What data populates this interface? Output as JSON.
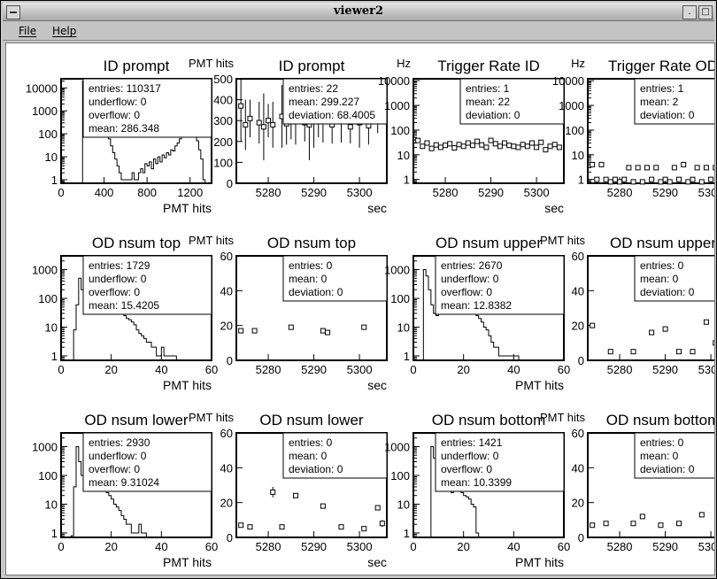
{
  "window": {
    "title": "viewer2"
  },
  "menubar": {
    "items": [
      {
        "label": "File"
      },
      {
        "label": "Help"
      }
    ]
  },
  "chart_data": [
    {
      "type": "histogram",
      "title": "ID prompt",
      "xlabel": "PMT hits",
      "ylabel": "",
      "log_y": true,
      "xlim": [
        0,
        1400
      ],
      "ylim": [
        0.7,
        25000
      ],
      "xticks": [
        0,
        400,
        800,
        1200
      ],
      "yticks": [
        1,
        10,
        100,
        1000,
        10000
      ],
      "stats": [
        {
          "label": "entries",
          "value": "110317"
        },
        {
          "label": "underflow",
          "value": "0"
        },
        {
          "label": "overflow",
          "value": "0"
        },
        {
          "label": "mean",
          "value": "286.348"
        }
      ],
      "x": [
        200,
        220,
        240,
        260,
        280,
        300,
        320,
        340,
        360,
        380,
        400,
        420,
        440,
        460,
        480,
        500,
        520,
        540,
        560,
        580,
        600,
        620,
        640,
        660,
        680,
        700,
        720,
        740,
        760,
        780,
        800,
        820,
        840,
        860,
        880,
        900,
        920,
        940,
        960,
        980,
        1000,
        1020,
        1040,
        1060,
        1080,
        1100,
        1120,
        1140,
        1160,
        1180,
        1200,
        1220,
        1240,
        1260,
        1280,
        1300,
        1320
      ],
      "values": [
        20000,
        8000,
        6000,
        4000,
        3000,
        1800,
        1000,
        700,
        500,
        350,
        200,
        120,
        60,
        30,
        15,
        8,
        4,
        2,
        1,
        1,
        1,
        1,
        1,
        2,
        1,
        1,
        2,
        3,
        2,
        5,
        4,
        6,
        3,
        8,
        5,
        10,
        6,
        12,
        9,
        15,
        12,
        20,
        18,
        30,
        40,
        60,
        80,
        150,
        300,
        500,
        700,
        600,
        200,
        50,
        20,
        8,
        1
      ]
    },
    {
      "type": "scatter",
      "title": "ID prompt",
      "xlabel": "sec",
      "ylabel": "PMT hits",
      "log_y": false,
      "xlim": [
        5273,
        5306
      ],
      "ylim": [
        0,
        500
      ],
      "xticks": [
        5280,
        5290,
        5300
      ],
      "yticks": [
        0,
        100,
        200,
        300,
        400,
        500
      ],
      "stats": [
        {
          "label": "entries",
          "value": "22"
        },
        {
          "label": "mean",
          "value": "299.227"
        },
        {
          "label": "deviation",
          "value": "68.4005"
        }
      ],
      "x": [
        5274,
        5275,
        5276,
        5278,
        5279,
        5280,
        5281,
        5283,
        5284,
        5285,
        5286,
        5288,
        5289,
        5290,
        5291,
        5292,
        5294,
        5296,
        5298,
        5300,
        5302,
        5304
      ],
      "values": [
        370,
        280,
        310,
        290,
        270,
        300,
        280,
        320,
        285,
        300,
        305,
        290,
        280,
        310,
        300,
        295,
        280,
        305,
        270,
        290,
        275,
        300
      ],
      "errors": [
        170,
        120,
        90,
        100,
        160,
        80,
        110,
        150,
        100,
        90,
        120,
        90,
        170,
        140,
        80,
        100,
        90,
        110,
        80,
        120,
        90,
        60
      ]
    },
    {
      "type": "scatter",
      "title": "Trigger Rate ID",
      "xlabel": "sec",
      "ylabel": "Hz",
      "log_y": true,
      "xlim": [
        5273,
        5306
      ],
      "ylim": [
        0.7,
        12000
      ],
      "xticks": [
        5280,
        5290,
        5300
      ],
      "yticks": [
        1,
        10,
        100,
        1000,
        10000
      ],
      "stats": [
        {
          "label": "entries",
          "value": "1"
        },
        {
          "label": "mean",
          "value": "22"
        },
        {
          "label": "deviation",
          "value": "0"
        }
      ],
      "x": [
        5274,
        5275,
        5276,
        5277,
        5278,
        5279,
        5280,
        5281,
        5282,
        5283,
        5284,
        5285,
        5286,
        5287,
        5288,
        5289,
        5290,
        5291,
        5292,
        5293,
        5294,
        5295,
        5296,
        5297,
        5298,
        5299,
        5300,
        5301,
        5302,
        5303,
        5304,
        5305
      ],
      "values": [
        38,
        22,
        30,
        18,
        25,
        20,
        24,
        28,
        19,
        26,
        22,
        30,
        24,
        35,
        25,
        20,
        38,
        28,
        22,
        30,
        24,
        22,
        20,
        26,
        22,
        30,
        20,
        32,
        16,
        22,
        26,
        20
      ]
    },
    {
      "type": "scatter",
      "title": "Trigger Rate OD",
      "xlabel": "sec",
      "ylabel": "Hz",
      "log_y": true,
      "xlim": [
        5273,
        5306
      ],
      "ylim": [
        0.7,
        12000
      ],
      "xticks": [
        5280,
        5290,
        5300
      ],
      "yticks": [
        1,
        10,
        100,
        1000,
        10000
      ],
      "stats": [
        {
          "label": "entries",
          "value": "1"
        },
        {
          "label": "mean",
          "value": "2"
        },
        {
          "label": "deviation",
          "value": "0"
        }
      ],
      "x": [
        5274,
        5275,
        5276,
        5277,
        5278,
        5279,
        5280,
        5281,
        5282,
        5283,
        5284,
        5285,
        5286,
        5287,
        5288,
        5289,
        5290,
        5291,
        5292,
        5293,
        5294,
        5295,
        5296,
        5297,
        5298,
        5299,
        5300,
        5301,
        5302,
        5303,
        5304,
        5305
      ],
      "values": [
        4,
        1,
        4,
        1,
        0.8,
        1,
        0.8,
        1,
        3,
        0.8,
        3,
        0.8,
        3,
        1,
        3,
        0.8,
        1,
        0.8,
        3,
        1,
        4,
        0.8,
        1,
        3,
        0.8,
        3,
        1,
        3,
        0.8,
        3,
        1,
        2
      ]
    },
    {
      "type": "histogram",
      "title": "OD nsum top",
      "xlabel": "PMT hits",
      "ylabel": "",
      "log_y": true,
      "xlim": [
        0,
        60
      ],
      "ylim": [
        0.7,
        3000
      ],
      "xticks": [
        0,
        20,
        40,
        60
      ],
      "yticks": [
        1,
        10,
        100,
        1000
      ],
      "stats": [
        {
          "label": "entries",
          "value": "1729"
        },
        {
          "label": "underflow",
          "value": "0"
        },
        {
          "label": "overflow",
          "value": "0"
        },
        {
          "label": "mean",
          "value": "15.4205"
        }
      ],
      "x": [
        5,
        6,
        7,
        8,
        9,
        10,
        11,
        12,
        13,
        14,
        15,
        16,
        17,
        18,
        19,
        20,
        21,
        22,
        23,
        24,
        25,
        26,
        27,
        28,
        29,
        30,
        31,
        32,
        33,
        34,
        35,
        36,
        37,
        38,
        39,
        40,
        41,
        42,
        43,
        44,
        45
      ],
      "values": [
        8,
        60,
        500,
        200,
        80,
        40,
        30,
        70,
        120,
        110,
        130,
        120,
        100,
        90,
        75,
        60,
        50,
        40,
        35,
        30,
        25,
        20,
        18,
        15,
        12,
        8,
        6,
        5,
        4,
        3,
        3,
        2,
        2,
        1,
        1,
        2,
        1,
        1,
        1,
        1,
        1
      ]
    },
    {
      "type": "scatter",
      "title": "OD nsum top",
      "xlabel": "sec",
      "ylabel": "PMT hits",
      "log_y": false,
      "xlim": [
        5273,
        5306
      ],
      "ylim": [
        0,
        60
      ],
      "xticks": [
        5280,
        5290,
        5300
      ],
      "yticks": [
        0,
        20,
        40,
        60
      ],
      "stats": [
        {
          "label": "entries",
          "value": "0"
        },
        {
          "label": "mean",
          "value": "0"
        },
        {
          "label": "deviation",
          "value": "0"
        }
      ],
      "x": [
        5274,
        5277,
        5285,
        5292,
        5293,
        5301
      ],
      "values": [
        17,
        17,
        19,
        17,
        16,
        19
      ]
    },
    {
      "type": "histogram",
      "title": "OD nsum upper",
      "xlabel": "PMT hits",
      "ylabel": "",
      "log_y": true,
      "xlim": [
        0,
        60
      ],
      "ylim": [
        0.7,
        3000
      ],
      "xticks": [
        0,
        20,
        40,
        60
      ],
      "yticks": [
        1,
        10,
        100,
        1000
      ],
      "stats": [
        {
          "label": "entries",
          "value": "2670"
        },
        {
          "label": "underflow",
          "value": "0"
        },
        {
          "label": "overflow",
          "value": "0"
        },
        {
          "label": "mean",
          "value": "12.8382"
        }
      ],
      "x": [
        3,
        4,
        5,
        6,
        7,
        8,
        9,
        10,
        11,
        12,
        13,
        14,
        15,
        16,
        17,
        18,
        19,
        20,
        21,
        22,
        23,
        24,
        25,
        26,
        27,
        28,
        29,
        30,
        31,
        32,
        33,
        34,
        35,
        36,
        37,
        38,
        39,
        40,
        41,
        42
      ],
      "values": [
        0.7,
        1000,
        600,
        200,
        60,
        30,
        25,
        30,
        40,
        60,
        80,
        100,
        120,
        150,
        140,
        120,
        100,
        80,
        70,
        50,
        40,
        30,
        25,
        20,
        15,
        10,
        8,
        5,
        3,
        2,
        2,
        1,
        1,
        1,
        1,
        1,
        1,
        1,
        1,
        0.7
      ]
    },
    {
      "type": "scatter",
      "title": "OD nsum upper",
      "xlabel": "sec",
      "ylabel": "PMT hits",
      "log_y": false,
      "xlim": [
        5273,
        5306
      ],
      "ylim": [
        0,
        60
      ],
      "xticks": [
        5280,
        5290,
        5300
      ],
      "yticks": [
        0,
        20,
        40,
        60
      ],
      "stats": [
        {
          "label": "entries",
          "value": "0"
        },
        {
          "label": "mean",
          "value": "0"
        },
        {
          "label": "deviation",
          "value": "0"
        }
      ],
      "x": [
        5274,
        5278,
        5283,
        5287,
        5290,
        5293,
        5296,
        5299,
        5301,
        5303
      ],
      "values": [
        20,
        5,
        5,
        16,
        18,
        5,
        5,
        22,
        10,
        15
      ],
      "errors": [
        0,
        0,
        0,
        0,
        0,
        0,
        0,
        0,
        4,
        0
      ]
    },
    {
      "type": "histogram",
      "title": "OD nsum lower",
      "xlabel": "PMT hits",
      "ylabel": "",
      "log_y": true,
      "xlim": [
        0,
        60
      ],
      "ylim": [
        0.7,
        3000
      ],
      "xticks": [
        0,
        20,
        40,
        60
      ],
      "yticks": [
        1,
        10,
        100,
        1000
      ],
      "stats": [
        {
          "label": "entries",
          "value": "2930"
        },
        {
          "label": "underflow",
          "value": "0"
        },
        {
          "label": "overflow",
          "value": "0"
        },
        {
          "label": "mean",
          "value": "9.31024"
        }
      ],
      "x": [
        4,
        5,
        6,
        7,
        8,
        9,
        10,
        11,
        12,
        13,
        14,
        15,
        16,
        17,
        18,
        19,
        20,
        21,
        22,
        23,
        24,
        25,
        26,
        27,
        28,
        29,
        30,
        31,
        32,
        33
      ],
      "values": [
        0.8,
        40,
        1000,
        300,
        100,
        40,
        30,
        50,
        60,
        70,
        60,
        50,
        40,
        30,
        25,
        20,
        15,
        10,
        8,
        6,
        4,
        3,
        2,
        2,
        1,
        1,
        1,
        2,
        1,
        1
      ]
    },
    {
      "type": "scatter",
      "title": "OD nsum lower",
      "xlabel": "sec",
      "ylabel": "PMT hits",
      "log_y": false,
      "xlim": [
        5273,
        5306
      ],
      "ylim": [
        0,
        60
      ],
      "xticks": [
        5280,
        5290,
        5300
      ],
      "yticks": [
        0,
        20,
        40,
        60
      ],
      "stats": [
        {
          "label": "entries",
          "value": "0"
        },
        {
          "label": "mean",
          "value": "0"
        },
        {
          "label": "deviation",
          "value": "0"
        }
      ],
      "x": [
        5274,
        5276,
        5281,
        5283,
        5286,
        5292,
        5296,
        5301,
        5304,
        5305
      ],
      "values": [
        7,
        6,
        26,
        6,
        24,
        18,
        6,
        5,
        17,
        8
      ],
      "errors": [
        0,
        0,
        3,
        0,
        0,
        1,
        0,
        0,
        0,
        2
      ]
    },
    {
      "type": "histogram",
      "title": "OD nsum bottom",
      "xlabel": "PMT hits",
      "ylabel": "",
      "log_y": true,
      "xlim": [
        0,
        60
      ],
      "ylim": [
        0.7,
        3000
      ],
      "xticks": [
        0,
        20,
        40,
        60
      ],
      "yticks": [
        1,
        10,
        100,
        1000
      ],
      "stats": [
        {
          "label": "entries",
          "value": "1421"
        },
        {
          "label": "underflow",
          "value": "0"
        },
        {
          "label": "overflow",
          "value": "0"
        },
        {
          "label": "mean",
          "value": "10.3399"
        }
      ],
      "x": [
        6,
        7,
        8,
        9,
        10,
        11,
        12,
        13,
        14,
        15,
        16,
        17,
        18,
        19,
        20,
        21,
        22,
        23,
        24,
        25,
        26
      ],
      "values": [
        0.7,
        1000,
        400,
        150,
        80,
        60,
        50,
        40,
        30,
        25,
        30,
        35,
        30,
        25,
        20,
        18,
        15,
        10,
        8,
        1,
        0.7
      ]
    },
    {
      "type": "scatter",
      "title": "OD nsum bottom",
      "xlabel": "sec",
      "ylabel": "PMT hits",
      "log_y": false,
      "xlim": [
        5273,
        5306
      ],
      "ylim": [
        0,
        60
      ],
      "xticks": [
        5280,
        5290,
        5300
      ],
      "yticks": [
        0,
        20,
        40,
        60
      ],
      "stats": [
        {
          "label": "entries",
          "value": "0"
        },
        {
          "label": "mean",
          "value": "0"
        },
        {
          "label": "deviation",
          "value": "0"
        }
      ],
      "x": [
        5274,
        5277,
        5283,
        5285,
        5289,
        5293,
        5298,
        5305
      ],
      "values": [
        7,
        8,
        8,
        12,
        7,
        8,
        13,
        7
      ]
    }
  ]
}
